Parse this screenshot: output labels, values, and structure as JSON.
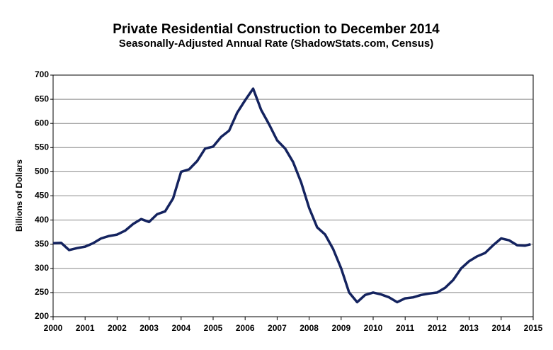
{
  "chart_data": {
    "type": "line",
    "title": "Private Residential Construction to December 2014",
    "subtitle": "Seasonally-Adjusted Annual Rate (ShadowStats.com, Census)",
    "y_label": "Billions  of Dollars",
    "x": [
      2000,
      2000.25,
      2000.5,
      2000.75,
      2001,
      2001.25,
      2001.5,
      2001.75,
      2002,
      2002.25,
      2002.5,
      2002.75,
      2003,
      2003.25,
      2003.5,
      2003.75,
      2004,
      2004.25,
      2004.5,
      2004.75,
      2005,
      2005.25,
      2005.5,
      2005.75,
      2006,
      2006.25,
      2006.5,
      2006.75,
      2007,
      2007.25,
      2007.5,
      2007.75,
      2008,
      2008.25,
      2008.5,
      2008.75,
      2009,
      2009.25,
      2009.5,
      2009.75,
      2010,
      2010.25,
      2010.5,
      2010.75,
      2011,
      2011.25,
      2011.5,
      2011.75,
      2012,
      2012.25,
      2012.5,
      2012.75,
      2013,
      2013.25,
      2013.5,
      2013.75,
      2014,
      2014.25,
      2014.5,
      2014.75,
      2014.92
    ],
    "values": [
      352,
      353,
      338,
      342,
      345,
      352,
      362,
      367,
      370,
      378,
      392,
      402,
      396,
      412,
      418,
      445,
      500,
      505,
      522,
      548,
      552,
      572,
      585,
      622,
      648,
      672,
      628,
      598,
      565,
      548,
      520,
      478,
      425,
      385,
      370,
      340,
      300,
      250,
      230,
      245,
      250,
      246,
      240,
      230,
      238,
      240,
      245,
      248,
      250,
      260,
      276,
      300,
      315,
      325,
      332,
      348,
      362,
      358,
      348,
      347,
      350
    ],
    "color": "#14235f",
    "xlim": [
      2000,
      2015
    ],
    "xticks": [
      2000,
      2001,
      2002,
      2003,
      2004,
      2005,
      2006,
      2007,
      2008,
      2009,
      2010,
      2011,
      2012,
      2013,
      2014,
      2015
    ],
    "ylim": [
      200,
      700
    ],
    "yticks": [
      200,
      250,
      300,
      350,
      400,
      450,
      500,
      550,
      600,
      650,
      700
    ],
    "grid": true
  }
}
